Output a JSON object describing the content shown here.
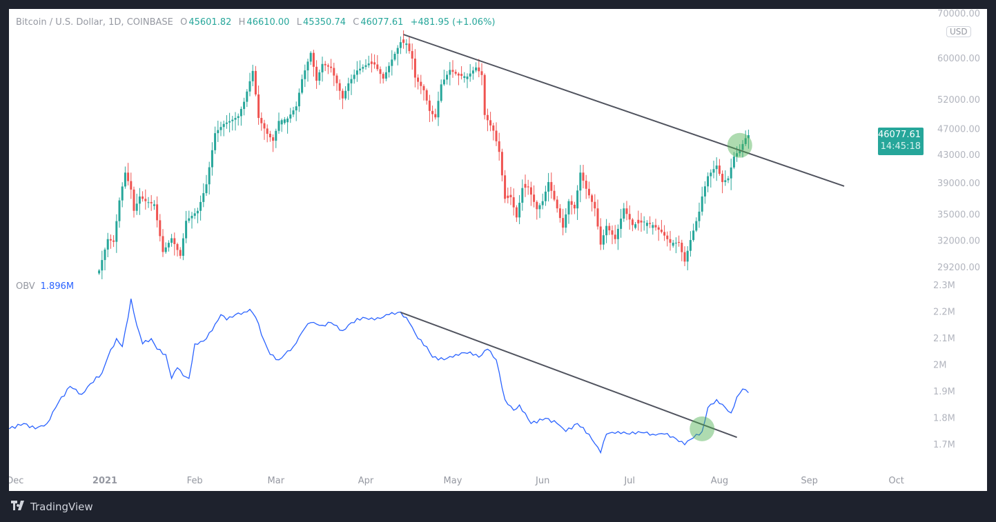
{
  "legend": {
    "symbol": "Bitcoin / U.S. Dollar, 1D, COINBASE",
    "o_label": "O",
    "open": "45601.82",
    "h_label": "H",
    "high": "46610.00",
    "l_label": "L",
    "low": "45350.74",
    "c_label": "C",
    "close": "46077.61",
    "change": "+481.95 (+1.06%)"
  },
  "obv_legend": {
    "label": "OBV",
    "value": "1.896M"
  },
  "currency": "USD",
  "price_tag": {
    "price": "46077.61",
    "countdown": "14:45:18"
  },
  "footer": {
    "brand": "TradingView",
    "logo": "TV"
  },
  "colors": {
    "up": "#26a69a",
    "down": "#ef5350",
    "obv": "#2962ff",
    "trendline": "#50535e",
    "highlight": "#4caf50",
    "background": "#1e222d"
  },
  "chart_data": [
    {
      "type": "candlestick",
      "title": "Bitcoin / U.S. Dollar, 1D, COINBASE",
      "yscale": "log",
      "ylim": [
        28000,
        70000
      ],
      "y_ticks": [
        "70000.00",
        "60000.00",
        "52000.00",
        "47000.00",
        "43000.00",
        "39000.00",
        "35000.00",
        "32000.00",
        "29200.00"
      ],
      "x_ticks": [
        {
          "label": "Dec",
          "date": "2020-12-01"
        },
        {
          "label": "2021",
          "date": "2021-01-01"
        },
        {
          "label": "Feb",
          "date": "2021-02-01"
        },
        {
          "label": "Mar",
          "date": "2021-03-01"
        },
        {
          "label": "Apr",
          "date": "2021-04-01"
        },
        {
          "label": "May",
          "date": "2021-05-01"
        },
        {
          "label": "Jun",
          "date": "2021-06-01"
        },
        {
          "label": "Jul",
          "date": "2021-07-01"
        },
        {
          "label": "Aug",
          "date": "2021-08-01"
        },
        {
          "label": "Sep",
          "date": "2021-09-01"
        },
        {
          "label": "Oct",
          "date": "2021-10-01"
        }
      ],
      "closes": [
        [
          "2020-12-30",
          28900
        ],
        [
          "2021-01-02",
          32200
        ],
        [
          "2021-01-04",
          31900
        ],
        [
          "2021-01-06",
          36800
        ],
        [
          "2021-01-08",
          40500
        ],
        [
          "2021-01-10",
          38200
        ],
        [
          "2021-01-11",
          35500
        ],
        [
          "2021-01-13",
          37300
        ],
        [
          "2021-01-15",
          36700
        ],
        [
          "2021-01-18",
          36300
        ],
        [
          "2021-01-21",
          30800
        ],
        [
          "2021-01-24",
          32300
        ],
        [
          "2021-01-27",
          30400
        ],
        [
          "2021-01-29",
          34300
        ],
        [
          "2021-02-02",
          35500
        ],
        [
          "2021-02-05",
          38900
        ],
        [
          "2021-02-08",
          46400
        ],
        [
          "2021-02-11",
          47900
        ],
        [
          "2021-02-14",
          48600
        ],
        [
          "2021-02-16",
          49200
        ],
        [
          "2021-02-18",
          51700
        ],
        [
          "2021-02-21",
          57500
        ],
        [
          "2021-02-23",
          48900
        ],
        [
          "2021-02-26",
          46300
        ],
        [
          "2021-02-28",
          45200
        ],
        [
          "2021-03-02",
          48400
        ],
        [
          "2021-03-05",
          48800
        ],
        [
          "2021-03-08",
          50900
        ],
        [
          "2021-03-10",
          55900
        ],
        [
          "2021-03-13",
          61200
        ],
        [
          "2021-03-15",
          55600
        ],
        [
          "2021-03-17",
          58900
        ],
        [
          "2021-03-20",
          58100
        ],
        [
          "2021-03-24",
          52300
        ],
        [
          "2021-03-26",
          55100
        ],
        [
          "2021-03-29",
          57600
        ],
        [
          "2021-04-02",
          59000
        ],
        [
          "2021-04-04",
          58800
        ],
        [
          "2021-04-07",
          56000
        ],
        [
          "2021-04-10",
          59800
        ],
        [
          "2021-04-13",
          63500
        ],
        [
          "2021-04-15",
          63200
        ],
        [
          "2021-04-17",
          60000
        ],
        [
          "2021-04-18",
          56200
        ],
        [
          "2021-04-21",
          53800
        ],
        [
          "2021-04-23",
          50100
        ],
        [
          "2021-04-25",
          49000
        ],
        [
          "2021-04-27",
          54900
        ],
        [
          "2021-04-30",
          57700
        ],
        [
          "2021-05-03",
          56600
        ],
        [
          "2021-05-06",
          56400
        ],
        [
          "2021-05-09",
          58200
        ],
        [
          "2021-05-11",
          56700
        ],
        [
          "2021-05-12",
          49400
        ],
        [
          "2021-05-15",
          46800
        ],
        [
          "2021-05-17",
          43500
        ],
        [
          "2021-05-19",
          37000
        ],
        [
          "2021-05-21",
          37200
        ],
        [
          "2021-05-23",
          34700
        ],
        [
          "2021-05-25",
          38400
        ],
        [
          "2021-05-27",
          38500
        ],
        [
          "2021-05-30",
          35700
        ],
        [
          "2021-06-01",
          36700
        ],
        [
          "2021-06-03",
          39200
        ],
        [
          "2021-06-06",
          35800
        ],
        [
          "2021-06-08",
          33500
        ],
        [
          "2021-06-10",
          36700
        ],
        [
          "2021-06-12",
          35800
        ],
        [
          "2021-06-14",
          40500
        ],
        [
          "2021-06-16",
          38300
        ],
        [
          "2021-06-19",
          35800
        ],
        [
          "2021-06-21",
          31600
        ],
        [
          "2021-06-23",
          33700
        ],
        [
          "2021-06-26",
          32200
        ],
        [
          "2021-06-29",
          35800
        ],
        [
          "2021-07-02",
          33800
        ],
        [
          "2021-07-06",
          34200
        ],
        [
          "2021-07-09",
          33800
        ],
        [
          "2021-07-12",
          33000
        ],
        [
          "2021-07-15",
          31800
        ],
        [
          "2021-07-18",
          31800
        ],
        [
          "2021-07-20",
          29800
        ],
        [
          "2021-07-22",
          32100
        ],
        [
          "2021-07-25",
          35400
        ],
        [
          "2021-07-26",
          37300
        ],
        [
          "2021-07-28",
          40000
        ],
        [
          "2021-07-31",
          41500
        ],
        [
          "2021-08-02",
          39200
        ],
        [
          "2021-08-04",
          39700
        ],
        [
          "2021-08-06",
          42800
        ],
        [
          "2021-08-08",
          43800
        ],
        [
          "2021-08-10",
          45600
        ],
        [
          "2021-08-11",
          46077.61
        ]
      ],
      "trendline": [
        [
          "2021-04-14",
          65200
        ],
        [
          "2021-09-13",
          38650
        ]
      ],
      "highlight": [
        "2021-08-08",
        44500
      ]
    },
    {
      "type": "line",
      "title": "OBV",
      "ylim": [
        1.62,
        2.33
      ],
      "y_ticks": [
        "2.3M",
        "2.2M",
        "2.1M",
        "2M",
        "1.9M",
        "1.8M",
        "1.7M"
      ],
      "series": [
        {
          "name": "OBV",
          "values": [
            [
              "2020-11-29",
              1.76
            ],
            [
              "2020-12-04",
              1.78
            ],
            [
              "2020-12-08",
              1.76
            ],
            [
              "2020-12-12",
              1.78
            ],
            [
              "2020-12-16",
              1.86
            ],
            [
              "2020-12-20",
              1.92
            ],
            [
              "2020-12-24",
              1.89
            ],
            [
              "2020-12-27",
              1.93
            ],
            [
              "2020-12-31",
              1.97
            ],
            [
              "2021-01-02",
              2.03
            ],
            [
              "2021-01-05",
              2.1
            ],
            [
              "2021-01-07",
              2.07
            ],
            [
              "2021-01-09",
              2.18
            ],
            [
              "2021-01-10",
              2.25
            ],
            [
              "2021-01-12",
              2.15
            ],
            [
              "2021-01-14",
              2.08
            ],
            [
              "2021-01-17",
              2.1
            ],
            [
              "2021-01-19",
              2.06
            ],
            [
              "2021-01-22",
              2.04
            ],
            [
              "2021-01-24",
              1.95
            ],
            [
              "2021-01-26",
              1.99
            ],
            [
              "2021-01-28",
              1.96
            ],
            [
              "2021-01-30",
              1.95
            ],
            [
              "2021-02-01",
              2.08
            ],
            [
              "2021-02-04",
              2.09
            ],
            [
              "2021-02-07",
              2.13
            ],
            [
              "2021-02-10",
              2.19
            ],
            [
              "2021-02-12",
              2.17
            ],
            [
              "2021-02-15",
              2.19
            ],
            [
              "2021-02-18",
              2.2
            ],
            [
              "2021-02-20",
              2.21
            ],
            [
              "2021-02-22",
              2.18
            ],
            [
              "2021-02-25",
              2.09
            ],
            [
              "2021-02-27",
              2.04
            ],
            [
              "2021-03-02",
              2.02
            ],
            [
              "2021-03-04",
              2.04
            ],
            [
              "2021-03-07",
              2.07
            ],
            [
              "2021-03-11",
              2.14
            ],
            [
              "2021-03-13",
              2.16
            ],
            [
              "2021-03-17",
              2.15
            ],
            [
              "2021-03-20",
              2.16
            ],
            [
              "2021-03-24",
              2.13
            ],
            [
              "2021-03-27",
              2.16
            ],
            [
              "2021-03-31",
              2.18
            ],
            [
              "2021-04-04",
              2.17
            ],
            [
              "2021-04-09",
              2.19
            ],
            [
              "2021-04-13",
              2.2
            ],
            [
              "2021-04-16",
              2.16
            ],
            [
              "2021-04-19",
              2.1
            ],
            [
              "2021-04-22",
              2.07
            ],
            [
              "2021-04-24",
              2.03
            ],
            [
              "2021-04-28",
              2.02
            ],
            [
              "2021-05-02",
              2.04
            ],
            [
              "2021-05-07",
              2.05
            ],
            [
              "2021-05-10",
              2.03
            ],
            [
              "2021-05-13",
              2.06
            ],
            [
              "2021-05-16",
              2.02
            ],
            [
              "2021-05-19",
              1.87
            ],
            [
              "2021-05-22",
              1.83
            ],
            [
              "2021-05-24",
              1.85
            ],
            [
              "2021-05-28",
              1.78
            ],
            [
              "2021-06-02",
              1.8
            ],
            [
              "2021-06-06",
              1.78
            ],
            [
              "2021-06-09",
              1.75
            ],
            [
              "2021-06-13",
              1.78
            ],
            [
              "2021-06-17",
              1.74
            ],
            [
              "2021-06-21",
              1.67
            ],
            [
              "2021-06-23",
              1.74
            ],
            [
              "2021-06-27",
              1.75
            ],
            [
              "2021-07-01",
              1.74
            ],
            [
              "2021-07-04",
              1.75
            ],
            [
              "2021-07-09",
              1.74
            ],
            [
              "2021-07-13",
              1.74
            ],
            [
              "2021-07-16",
              1.73
            ],
            [
              "2021-07-20",
              1.7
            ],
            [
              "2021-07-22",
              1.72
            ],
            [
              "2021-07-26",
              1.75
            ],
            [
              "2021-07-28",
              1.84
            ],
            [
              "2021-07-31",
              1.87
            ],
            [
              "2021-08-03",
              1.84
            ],
            [
              "2021-08-05",
              1.82
            ],
            [
              "2021-08-07",
              1.88
            ],
            [
              "2021-08-09",
              1.91
            ],
            [
              "2021-08-11",
              1.896
            ]
          ]
        }
      ],
      "trendline": [
        [
          "2021-04-13",
          2.199
        ],
        [
          "2021-08-07",
          1.728
        ]
      ],
      "highlight": [
        "2021-07-26",
        1.76
      ]
    }
  ]
}
